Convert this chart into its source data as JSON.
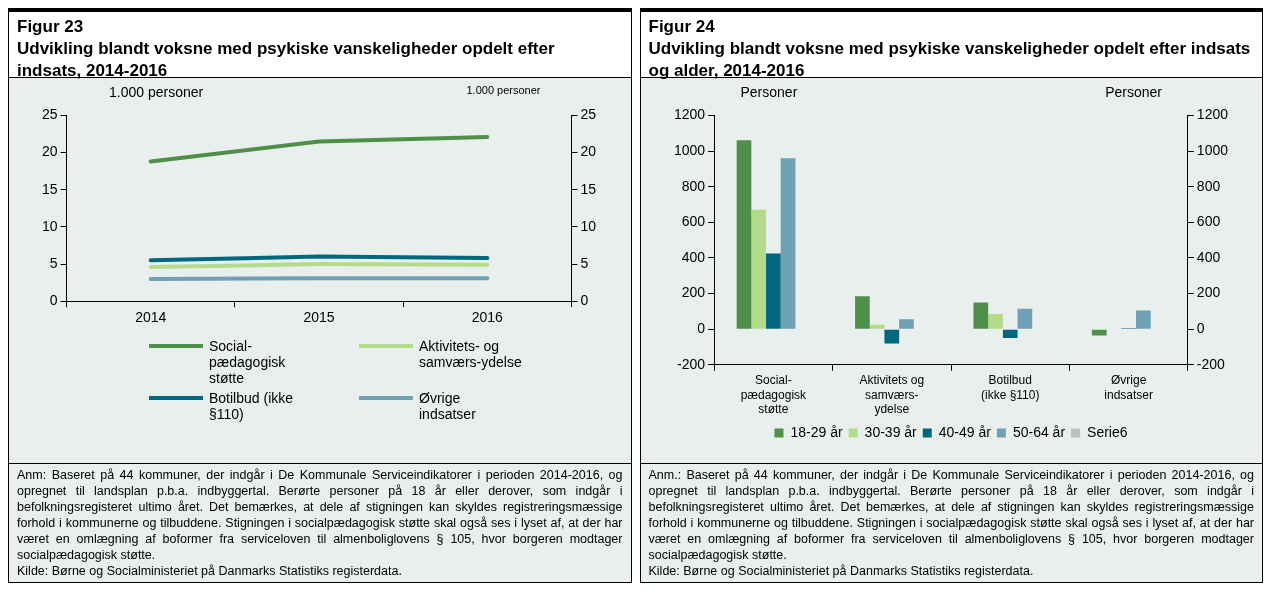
{
  "chart_data": [
    {
      "type": "line",
      "title": "Figur 23",
      "subtitle": "Udvikling blandt voksne med psykiske vanskeligheder opdelt efter indsats, 2014-2016",
      "ylabel": "1.000 personer",
      "y2label": "1.000 personer",
      "categories": [
        "2014",
        "2015",
        "2016"
      ],
      "ylim": [
        0,
        25
      ],
      "yticks": [
        0,
        5,
        10,
        15,
        20,
        25
      ],
      "y2lim": [
        0,
        25
      ],
      "y2ticks": [
        0,
        5,
        10,
        15,
        20,
        25
      ],
      "legend": "bottom",
      "series": [
        {
          "name": "Social-pædagogisk støtte",
          "color": "#4f8f4a",
          "values": [
            18.8,
            21.5,
            22.1
          ]
        },
        {
          "name": "Aktivitets- og samværs-ydelse",
          "color": "#b3dc8a",
          "values": [
            4.6,
            5.0,
            4.9
          ]
        },
        {
          "name": "Botilbud (ikke §110)",
          "color": "#00677f",
          "values": [
            5.5,
            6.0,
            5.8
          ]
        },
        {
          "name": "Øvrige indsatser",
          "color": "#6fa0b4",
          "values": [
            3.0,
            3.1,
            3.1
          ]
        }
      ],
      "annotations": [
        "Anm:  Baseret på 44 kommuner, der indgår i De Kommunale Serviceindikatorer i perioden 2014-2016, og opregnet til landsplan p.b.a. indbyggertal. Berørte personer på 18 år eller derover, som indgår i befolkningsregisteret ultimo året.  Det bemærkes, at dele af stigningen kan skyldes registreringsmæssige forhold i kommunerne og tilbuddene. Stigningen i socialpædagogisk støtte skal også ses i lyset af, at der har været en omlægning af boformer fra serviceloven til almenboliglovens § 105, hvor borgeren modtager socialpædagogisk støtte.",
        "Kilde: Børne og Socialministeriet på Danmarks Statistiks registerdata."
      ]
    },
    {
      "type": "bar",
      "title": "Figur 24",
      "subtitle": "Udvikling blandt voksne med psykiske vanskeligheder opdelt efter indsats og alder, 2014-2016",
      "ylabel": "Personer",
      "y2label": "Personer",
      "categories": [
        "Social-pædagogisk støtte",
        "Aktivitets og samværs-ydelse",
        "Botilbud (ikke §110)",
        "Øvrige indsatser"
      ],
      "ylim": [
        -200,
        1200
      ],
      "yticks": [
        -200,
        0,
        200,
        400,
        600,
        800,
        1000,
        1200
      ],
      "y2lim": [
        -200,
        1200
      ],
      "y2ticks": [
        -200,
        0,
        200,
        400,
        600,
        800,
        1000,
        1200
      ],
      "legend": "bottom",
      "series": [
        {
          "name": "18-29 år",
          "color": "#4f8f4a",
          "values": [
            1060,
            185,
            150,
            -35
          ]
        },
        {
          "name": "30-39 år",
          "color": "#b3dc8a",
          "values": [
            670,
            25,
            85,
            0
          ]
        },
        {
          "name": "40-49 år",
          "color": "#00677f",
          "values": [
            425,
            -80,
            -50,
            5
          ]
        },
        {
          "name": "50-64 år",
          "color": "#6fa0b4",
          "values": [
            960,
            55,
            115,
            105
          ]
        },
        {
          "name": "Serie6",
          "color": "#bfbfbf",
          "values": [
            null,
            null,
            null,
            null
          ]
        }
      ],
      "annotations": [
        "Anm.: Baseret på 44 kommuner, der indgår i De Kommunale Serviceindikatorer i perioden 2014-2016, og opregnet til landsplan p.b.a. indbyggertal. Berørte personer på 18 år eller derover, som indgår i befolkningsregisteret ultimo året.  Det bemærkes, at dele af stigningen kan skyldes registreringsmæssige forhold i kommunerne og tilbuddene. Stigningen i socialpædagogisk støtte skal også ses i lyset af, at der har været en omlægning af boformer fra serviceloven til almenboliglovens § 105, hvor borgeren modtager socialpædagogisk støtte.",
        "Kilde: Børne og Socialministeriet på Danmarks Statistiks registerdata."
      ]
    }
  ]
}
